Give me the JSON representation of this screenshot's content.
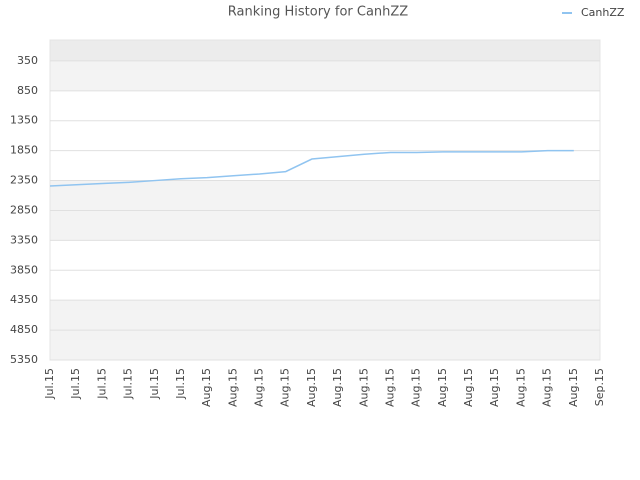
{
  "chart_data": {
    "type": "line",
    "title": "Ranking History for CanhZZ",
    "categories": [
      "Jul.15",
      "Jul.15",
      "Jul.15",
      "Jul.15",
      "Jul.15",
      "Jul.15",
      "Aug.15",
      "Aug.15",
      "Aug.15",
      "Aug.15",
      "Aug.15",
      "Aug.15",
      "Aug.15",
      "Aug.15",
      "Aug.15",
      "Aug.15",
      "Aug.15",
      "Aug.15",
      "Aug.15",
      "Aug.15",
      "Aug.15",
      "Sep.15"
    ],
    "series": [
      {
        "name": "CanhZZ",
        "color": "#90c4f0",
        "values": [
          2440,
          2420,
          2400,
          2380,
          2350,
          2320,
          2300,
          2270,
          2240,
          2200,
          1990,
          1950,
          1910,
          1880,
          1880,
          1870,
          1870,
          1870,
          1870,
          1850,
          1850,
          null
        ]
      }
    ],
    "ylim": [
      0,
      5350
    ],
    "y_reversed": true,
    "yticks": [
      350,
      850,
      1350,
      1850,
      2350,
      2850,
      3350,
      3850,
      4350,
      4850,
      5350
    ],
    "grid": true,
    "legend": "top-right"
  }
}
